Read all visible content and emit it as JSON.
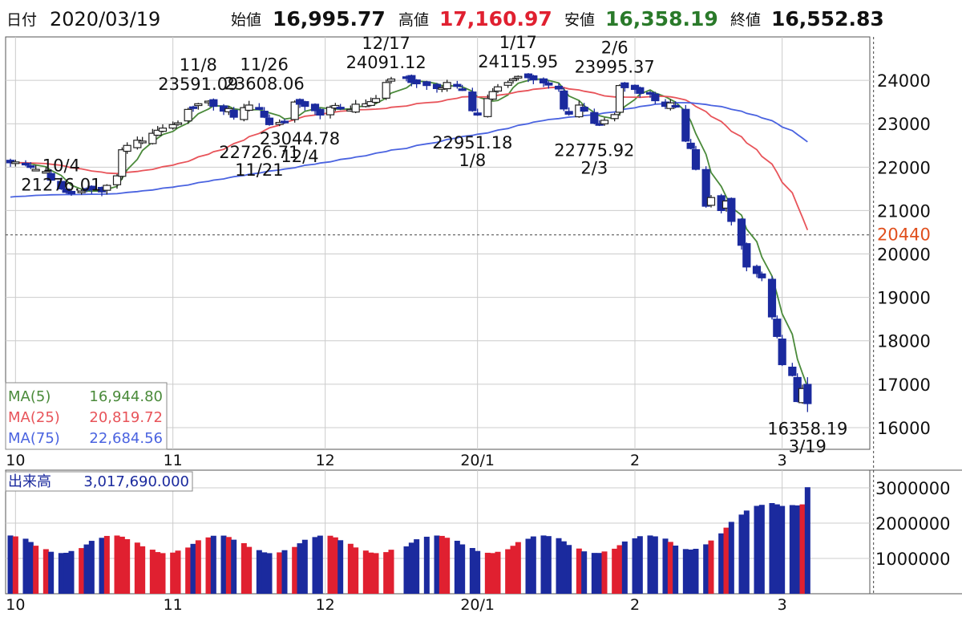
{
  "header": {
    "date_label": "日付",
    "date_value": "2020/03/19",
    "open_label": "始値",
    "open_value": "16,995.77",
    "high_label": "高値",
    "high_value": "17,160.97",
    "low_label": "安値",
    "low_value": "16,358.19",
    "close_label": "終値",
    "close_value": "16,552.83"
  },
  "colors": {
    "ma5": "#4a8a3a",
    "ma25": "#e8545a",
    "ma75": "#4a63e0",
    "candle_down": "#1b2a9e",
    "candle_up_fill": "#ffffff",
    "volume_up": "#e02030",
    "volume_down": "#1b2a9e",
    "high_value": "#e02030",
    "low_value": "#2a7a2a",
    "reference_line_label": "#e0501e",
    "grid": "#cccccc"
  },
  "chart_data": [
    {
      "type": "candlestick",
      "name": "price",
      "x_labels": [
        {
          "label": "10",
          "day": 2
        },
        {
          "label": "11",
          "day": 33
        },
        {
          "label": "12",
          "day": 63
        },
        {
          "label": "20/1",
          "day": 93
        },
        {
          "label": "2",
          "day": 124
        },
        {
          "label": "3",
          "day": 153
        }
      ],
      "ylim": [
        15500,
        25000
      ],
      "y_ticks": [
        16000,
        17000,
        18000,
        19000,
        20000,
        21000,
        22000,
        23000,
        24000
      ],
      "reference_line": {
        "value": 20440,
        "label": "20440"
      },
      "current_day": 171,
      "closes": [
        [
          1,
          22100
        ],
        [
          2,
          22120
        ],
        [
          4,
          22080
        ],
        [
          5,
          22000
        ],
        [
          6,
          21950
        ],
        [
          8,
          21900
        ],
        [
          9,
          21700
        ],
        [
          11,
          21500
        ],
        [
          12,
          21420
        ],
        [
          13,
          21390
        ],
        [
          15,
          21450
        ],
        [
          16,
          21500
        ],
        [
          17,
          21480
        ],
        [
          19,
          21430
        ],
        [
          20,
          21580
        ],
        [
          22,
          21800
        ],
        [
          23,
          22400
        ],
        [
          24,
          22500
        ],
        [
          26,
          22620
        ],
        [
          27,
          22600
        ],
        [
          29,
          22780
        ],
        [
          30,
          22850
        ],
        [
          31,
          22900
        ],
        [
          33,
          22980
        ],
        [
          34,
          23020
        ],
        [
          36,
          23330
        ],
        [
          37,
          23360
        ],
        [
          38,
          23460
        ],
        [
          40,
          23520
        ],
        [
          41,
          23400
        ],
        [
          43,
          23290
        ],
        [
          44,
          23350
        ],
        [
          45,
          23150
        ],
        [
          47,
          23370
        ],
        [
          48,
          23430
        ],
        [
          50,
          23330
        ],
        [
          51,
          23150
        ],
        [
          52,
          22980
        ],
        [
          54,
          23030
        ],
        [
          55,
          23050
        ],
        [
          57,
          23500
        ],
        [
          58,
          23450
        ],
        [
          59,
          23400
        ],
        [
          61,
          23300
        ],
        [
          62,
          23200
        ],
        [
          64,
          23380
        ],
        [
          65,
          23420
        ],
        [
          66,
          23370
        ],
        [
          68,
          23330
        ],
        [
          69,
          23450
        ],
        [
          71,
          23460
        ],
        [
          72,
          23510
        ],
        [
          73,
          23580
        ],
        [
          75,
          23950
        ],
        [
          76,
          24030
        ],
        [
          79,
          24050
        ],
        [
          80,
          23950
        ],
        [
          81,
          23920
        ],
        [
          83,
          23880
        ],
        [
          85,
          23810
        ],
        [
          86,
          23830
        ],
        [
          87,
          23950
        ],
        [
          89,
          23860
        ],
        [
          90,
          23790
        ],
        [
          92,
          23300
        ],
        [
          93,
          23200
        ],
        [
          95,
          23580
        ],
        [
          96,
          23740
        ],
        [
          97,
          23850
        ],
        [
          99,
          23950
        ],
        [
          100,
          24030
        ],
        [
          101,
          24090
        ],
        [
          103,
          24060
        ],
        [
          104,
          24010
        ],
        [
          106,
          23940
        ],
        [
          107,
          23890
        ],
        [
          109,
          23800
        ],
        [
          110,
          23340
        ],
        [
          111,
          23220
        ],
        [
          113,
          23430
        ],
        [
          114,
          23290
        ],
        [
          116,
          23010
        ],
        [
          117,
          22980
        ],
        [
          118,
          23080
        ],
        [
          120,
          23210
        ],
        [
          121,
          23880
        ],
        [
          122,
          23830
        ],
        [
          124,
          23790
        ],
        [
          125,
          23700
        ],
        [
          127,
          23690
        ],
        [
          128,
          23530
        ],
        [
          130,
          23400
        ],
        [
          131,
          23480
        ],
        [
          132,
          23390
        ],
        [
          134,
          22600
        ],
        [
          135,
          22430
        ],
        [
          136,
          21950
        ],
        [
          138,
          21100
        ],
        [
          139,
          21300
        ],
        [
          141,
          21000
        ],
        [
          142,
          21220
        ],
        [
          143,
          20750
        ],
        [
          145,
          20200
        ],
        [
          146,
          19700
        ],
        [
          148,
          19550
        ],
        [
          149,
          19450
        ],
        [
          151,
          18550
        ],
        [
          152,
          18100
        ],
        [
          153,
          17450
        ],
        [
          155,
          17200
        ],
        [
          156,
          16600
        ],
        [
          157,
          16900
        ],
        [
          158,
          16553
        ]
      ],
      "annotations": [
        {
          "type": "high",
          "day": 11,
          "price": 21276.01,
          "value_text": "21276.01",
          "date_text": "10/4"
        },
        {
          "type": "high",
          "day": 38,
          "price": 23591.09,
          "value_text": "23591.09",
          "date_text": "11/8"
        },
        {
          "type": "low",
          "day": 50,
          "price": 22726.71,
          "value_text": "22726.71",
          "date_text": "11/21"
        },
        {
          "type": "high",
          "day": 51,
          "price": 23608.06,
          "value_text": "23608.06",
          "date_text": "11/26"
        },
        {
          "type": "low",
          "day": 58,
          "price": 23044.78,
          "value_text": "23044.78",
          "date_text": "12/4"
        },
        {
          "type": "high",
          "day": 75,
          "price": 24091.12,
          "value_text": "24091.12",
          "date_text": "12/17"
        },
        {
          "type": "low",
          "day": 92,
          "price": 22951.18,
          "value_text": "22951.18",
          "date_text": "1/8"
        },
        {
          "type": "high",
          "day": 101,
          "price": 24115.95,
          "value_text": "24115.95",
          "date_text": "1/17"
        },
        {
          "type": "low",
          "day": 116,
          "price": 22775.92,
          "value_text": "22775.92",
          "date_text": "2/3"
        },
        {
          "type": "high",
          "day": 120,
          "price": 23995.37,
          "value_text": "23995.37",
          "date_text": "2/6"
        },
        {
          "type": "low",
          "day": 158,
          "price": 16358.19,
          "value_text": "16358.19",
          "date_text": "3/19"
        }
      ],
      "legend": [
        {
          "name": "MA(5)",
          "value": "16,944.80",
          "color_key": "ma5"
        },
        {
          "name": "MA(25)",
          "value": "20,819.72",
          "color_key": "ma25"
        },
        {
          "name": "MA(75)",
          "value": "22,684.56",
          "color_key": "ma75"
        }
      ],
      "legend_placement": "bottom-left"
    },
    {
      "type": "bar",
      "name": "volume",
      "label": "出来高",
      "label_value": "3,017,690.000",
      "ylim": [
        0,
        3500000
      ],
      "y_ticks": [
        1000000,
        2000000,
        3000000
      ],
      "x_labels": [
        {
          "label": "10",
          "day": 2
        },
        {
          "label": "11",
          "day": 33
        },
        {
          "label": "12",
          "day": 63
        },
        {
          "label": "20/1",
          "day": 93
        },
        {
          "label": "2",
          "day": 124
        },
        {
          "label": "3",
          "day": 153
        }
      ]
    }
  ]
}
